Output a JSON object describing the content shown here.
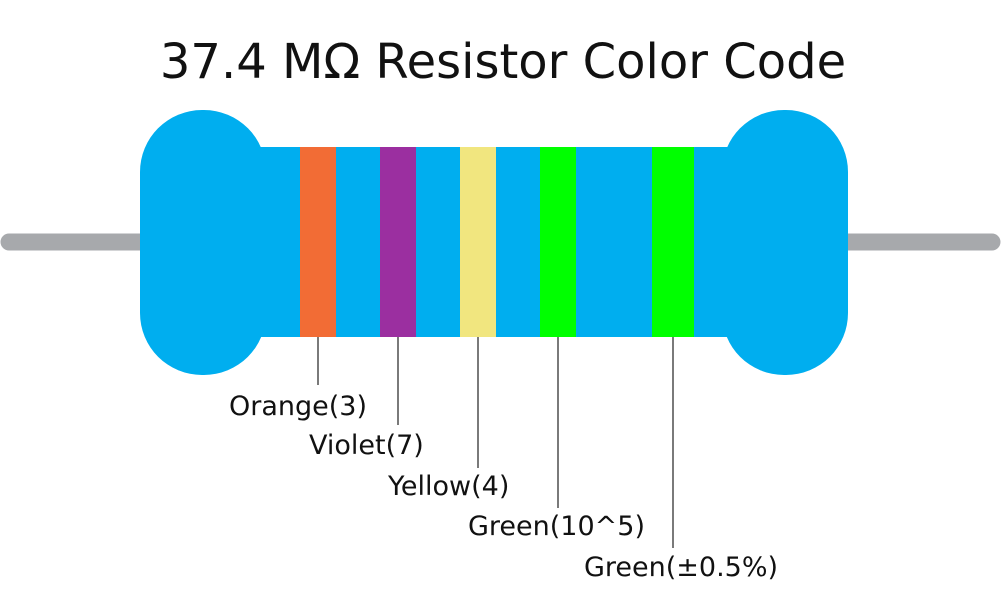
{
  "title": "37.4 MΩ Resistor Color Code",
  "bands": [
    {
      "label": "Orange(3)"
    },
    {
      "label": "Violet(7)"
    },
    {
      "label": "Yellow(4)"
    },
    {
      "label": "Green(10^5)"
    },
    {
      "label": "Green(±0.5%)"
    }
  ]
}
